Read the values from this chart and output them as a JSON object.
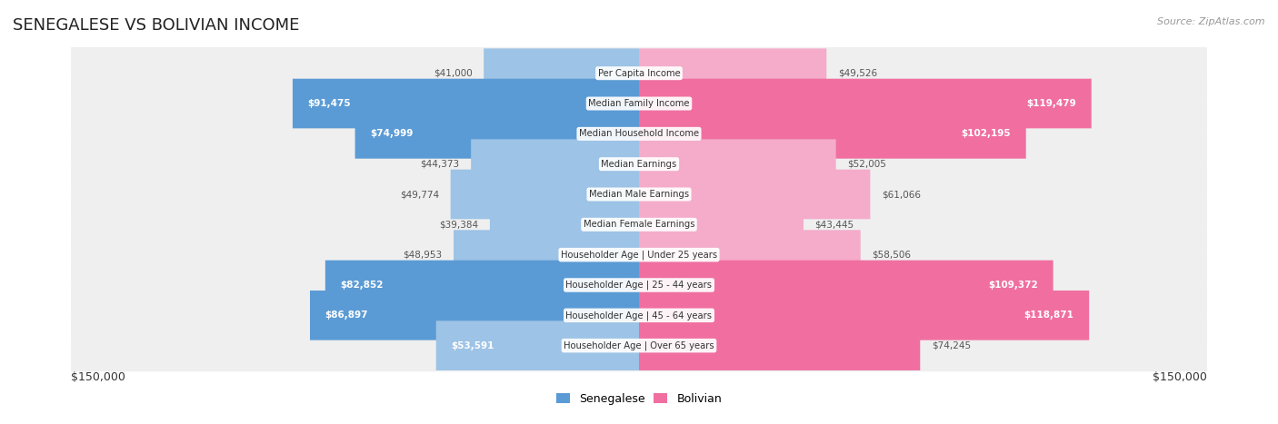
{
  "title": "SENEGALESE VS BOLIVIAN INCOME",
  "source": "Source: ZipAtlas.com",
  "categories": [
    "Per Capita Income",
    "Median Family Income",
    "Median Household Income",
    "Median Earnings",
    "Median Male Earnings",
    "Median Female Earnings",
    "Householder Age | Under 25 years",
    "Householder Age | 25 - 44 years",
    "Householder Age | 45 - 64 years",
    "Householder Age | Over 65 years"
  ],
  "senegalese": [
    41000,
    91475,
    74999,
    44373,
    49774,
    39384,
    48953,
    82852,
    86897,
    53591
  ],
  "bolivian": [
    49526,
    119479,
    102195,
    52005,
    61066,
    43445,
    58506,
    109372,
    118871,
    74245
  ],
  "senegalese_labels": [
    "$41,000",
    "$91,475",
    "$74,999",
    "$44,373",
    "$49,774",
    "$39,384",
    "$48,953",
    "$82,852",
    "$86,897",
    "$53,591"
  ],
  "bolivian_labels": [
    "$49,526",
    "$119,479",
    "$102,195",
    "$52,005",
    "$61,066",
    "$43,445",
    "$58,506",
    "$109,372",
    "$118,871",
    "$74,245"
  ],
  "sen_label_inside": [
    false,
    true,
    true,
    false,
    false,
    false,
    false,
    true,
    true,
    true
  ],
  "bol_label_inside": [
    false,
    true,
    true,
    false,
    false,
    false,
    false,
    true,
    true,
    false
  ],
  "max_val": 150000,
  "color_senegalese_dark": "#5b9bd5",
  "color_senegalese_light": "#9dc3e6",
  "color_bolivian_dark": "#f06fa0",
  "color_bolivian_light": "#f4acca",
  "color_row_bg": "#efefef",
  "background_color": "#ffffff",
  "axis_label": "$150,000",
  "legend_senegalese": "Senegalese",
  "legend_bolivian": "Bolivian"
}
